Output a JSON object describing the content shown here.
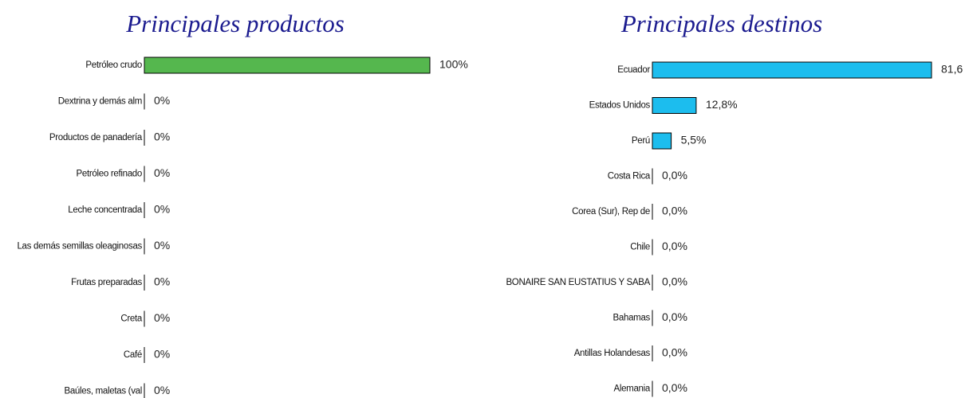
{
  "chart_data": [
    {
      "type": "bar",
      "orientation": "horizontal",
      "title": "Principales productos",
      "color": "#55b74e",
      "categories": [
        "Petróleo crudo",
        "Dextrina y demás alm",
        "Productos de panadería",
        "Petróleo refinado",
        "Leche concentrada",
        "Las demás semillas oleaginosas",
        "Frutas preparadas",
        "Creta",
        "Café",
        "Baúles, maletas (val"
      ],
      "values": [
        100,
        0,
        0,
        0,
        0,
        0,
        0,
        0,
        0,
        0
      ],
      "value_labels": [
        "100%",
        "0%",
        "0%",
        "0%",
        "0%",
        "0%",
        "0%",
        "0%",
        "0%",
        "0%"
      ]
    },
    {
      "type": "bar",
      "orientation": "horizontal",
      "title": "Principales destinos",
      "color": "#1cbdee",
      "categories": [
        "Ecuador",
        "Estados Unidos",
        "Perú",
        "Costa Rica",
        "Corea (Sur), Rep de",
        "Chile",
        "BONAIRE SAN EUSTATIUS Y SABA",
        "Bahamas",
        "Antillas Holandesas",
        "Alemania"
      ],
      "values": [
        81.6,
        12.8,
        5.5,
        0.0,
        0.0,
        0.0,
        0.0,
        0.0,
        0.0,
        0.0
      ],
      "value_labels": [
        "81,6",
        "12,8%",
        "5,5%",
        "0,0%",
        "0,0%",
        "0,0%",
        "0,0%",
        "0,0%",
        "0,0%",
        "0,0%"
      ]
    }
  ]
}
